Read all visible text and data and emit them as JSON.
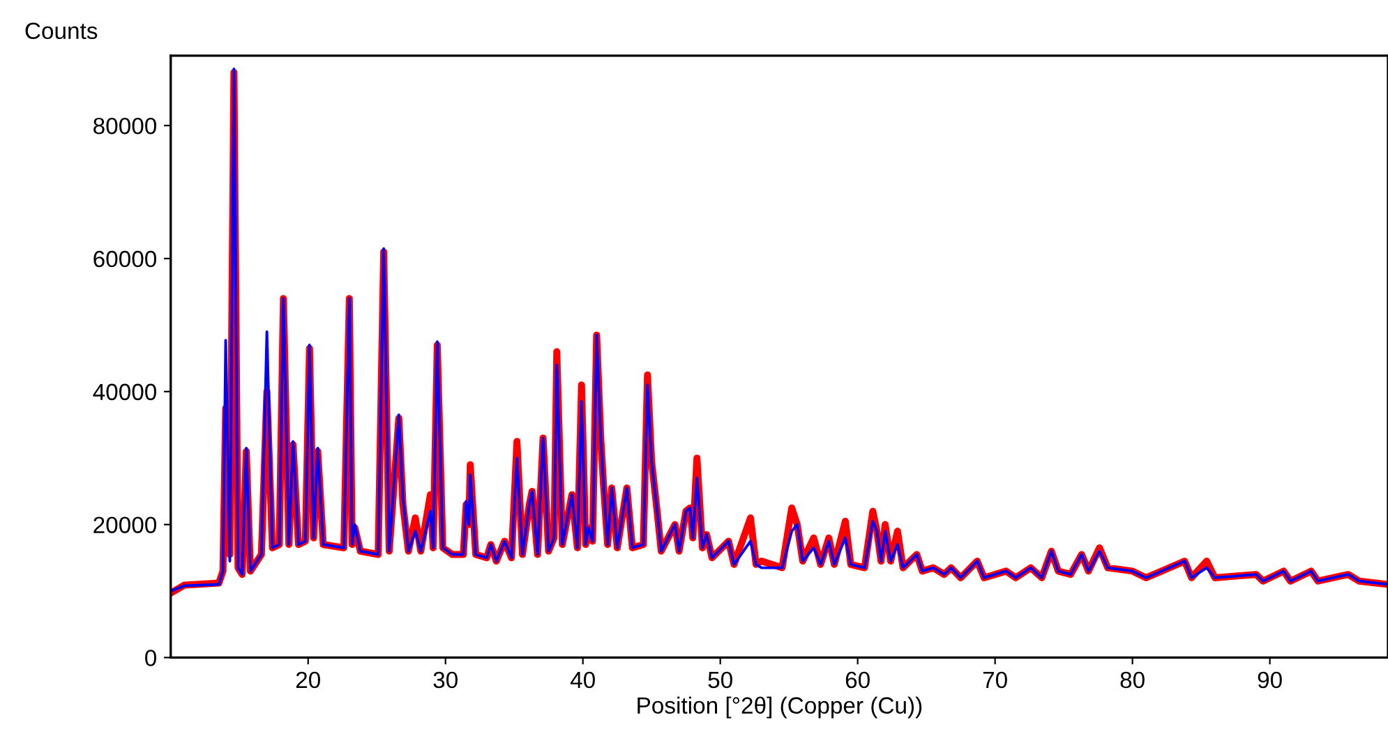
{
  "chart_data": {
    "type": "line",
    "xlabel": "Position [°2θ] (Copper (Cu))",
    "ylabel": "Counts",
    "x": [
      10.0,
      11.0,
      13.5,
      13.8,
      14.0,
      14.3,
      14.6,
      14.9,
      15.2,
      15.5,
      15.8,
      16.6,
      17.0,
      17.4,
      17.9,
      18.2,
      18.6,
      18.9,
      19.3,
      19.8,
      20.1,
      20.4,
      20.7,
      21.1,
      22.6,
      23.0,
      23.2,
      23.4,
      23.8,
      25.1,
      25.5,
      25.9,
      26.6,
      26.9,
      27.3,
      27.8,
      28.2,
      28.9,
      29.1,
      29.4,
      29.8,
      30.5,
      31.3,
      31.5,
      31.7,
      31.8,
      32.2,
      33.0,
      33.3,
      33.7,
      34.3,
      34.8,
      35.2,
      35.6,
      36.1,
      36.3,
      36.7,
      37.1,
      37.5,
      37.9,
      38.1,
      38.5,
      39.2,
      39.6,
      39.9,
      40.2,
      40.4,
      40.7,
      41.0,
      41.3,
      41.5,
      41.8,
      42.1,
      42.5,
      43.2,
      43.6,
      44.4,
      44.7,
      45.0,
      45.4,
      45.7,
      46.7,
      47.0,
      47.5,
      47.8,
      48.0,
      48.3,
      48.7,
      49.0,
      49.4,
      50.6,
      51.0,
      52.2,
      52.6,
      53.0,
      54.5,
      55.2,
      55.6,
      56.0,
      56.8,
      57.3,
      57.9,
      58.3,
      59.1,
      59.5,
      60.5,
      61.1,
      61.4,
      61.7,
      62.0,
      62.4,
      62.9,
      63.3,
      64.3,
      64.7,
      65.5,
      66.3,
      66.8,
      67.5,
      68.7,
      69.2,
      70.8,
      71.5,
      72.6,
      73.4,
      74.1,
      74.6,
      75.5,
      76.3,
      76.8,
      77.6,
      78.2,
      80.0,
      81.0,
      83.8,
      84.3,
      85.4,
      86.0,
      89.0,
      89.5,
      91.0,
      91.5,
      93.0,
      93.5,
      95.7,
      96.5,
      98.6
    ],
    "series": [
      {
        "color": "#ff0000",
        "values": [
          9700,
          10900,
          11200,
          13000,
          37500,
          15500,
          88000,
          13500,
          12500,
          31000,
          13000,
          15500,
          40000,
          16500,
          17000,
          54000,
          17000,
          32000,
          17000,
          17500,
          46500,
          18000,
          31000,
          17000,
          16500,
          54000,
          17000,
          19500,
          16000,
          15500,
          61000,
          16000,
          36000,
          23000,
          16000,
          21000,
          16000,
          24500,
          16500,
          47000,
          16500,
          15500,
          15500,
          23000,
          20000,
          29000,
          15500,
          15000,
          17000,
          14500,
          17500,
          15000,
          32500,
          15500,
          23000,
          25000,
          15500,
          33000,
          16000,
          18000,
          46000,
          17000,
          24500,
          16500,
          41000,
          17000,
          19500,
          17500,
          48500,
          33000,
          26000,
          17000,
          25500,
          16500,
          25500,
          16500,
          17000,
          42500,
          29500,
          22000,
          16000,
          20000,
          16000,
          22000,
          22500,
          18000,
          30000,
          16500,
          18500,
          15000,
          17500,
          14000,
          21000,
          14000,
          14500,
          13500,
          22500,
          20000,
          14500,
          18000,
          14000,
          18000,
          14000,
          20500,
          14000,
          13500,
          22000,
          19000,
          14500,
          20000,
          14500,
          19000,
          13500,
          15500,
          13000,
          13500,
          12500,
          13500,
          12000,
          14500,
          12000,
          13000,
          12000,
          13500,
          12000,
          16000,
          13000,
          12500,
          15500,
          13000,
          16500,
          13500,
          13000,
          12000,
          14500,
          12000,
          14500,
          12000,
          12500,
          11500,
          13000,
          11500,
          13000,
          11500,
          12500,
          11500,
          11000
        ]
      },
      {
        "color": "#0000ff",
        "values": [
          10000,
          10800,
          11000,
          13000,
          47700,
          14500,
          88500,
          13500,
          12500,
          31500,
          13000,
          15500,
          49000,
          16500,
          17000,
          54000,
          17000,
          32500,
          17000,
          17500,
          47000,
          18000,
          31500,
          17000,
          16500,
          54000,
          17000,
          20000,
          16000,
          15500,
          61500,
          16000,
          36500,
          24000,
          16000,
          19000,
          16000,
          22000,
          16500,
          47500,
          16500,
          15500,
          15500,
          23500,
          20000,
          27500,
          15500,
          15000,
          17000,
          14500,
          17500,
          15000,
          30000,
          15500,
          23000,
          25000,
          15500,
          33000,
          16000,
          18000,
          44000,
          17000,
          24500,
          16500,
          38500,
          17000,
          19500,
          17500,
          48500,
          33000,
          26000,
          17000,
          25500,
          16500,
          25500,
          16500,
          17000,
          41000,
          29500,
          22000,
          16000,
          20000,
          16000,
          22000,
          22500,
          18000,
          27000,
          16500,
          18500,
          15000,
          17500,
          14000,
          17500,
          14000,
          13500,
          13500,
          19000,
          20000,
          14500,
          16500,
          14000,
          17500,
          14000,
          18000,
          14000,
          13500,
          20500,
          19000,
          14500,
          19000,
          14500,
          17000,
          13500,
          15500,
          13000,
          13500,
          12500,
          13500,
          12000,
          14500,
          12000,
          13000,
          12000,
          13500,
          12000,
          16000,
          13000,
          12500,
          15500,
          13000,
          16000,
          13500,
          13000,
          12000,
          14500,
          12000,
          13500,
          12000,
          12500,
          11500,
          13000,
          11500,
          13000,
          11500,
          12500,
          11500,
          11000
        ]
      }
    ],
    "xlim": [
      10,
      98.6
    ],
    "ylim": [
      0,
      90500
    ],
    "xticks": [
      20,
      30,
      40,
      50,
      60,
      70,
      80,
      90
    ],
    "yticks": [
      0,
      20000,
      40000,
      60000,
      80000
    ],
    "grid": false,
    "legend": false,
    "marker": "none",
    "line_style": "solid"
  }
}
